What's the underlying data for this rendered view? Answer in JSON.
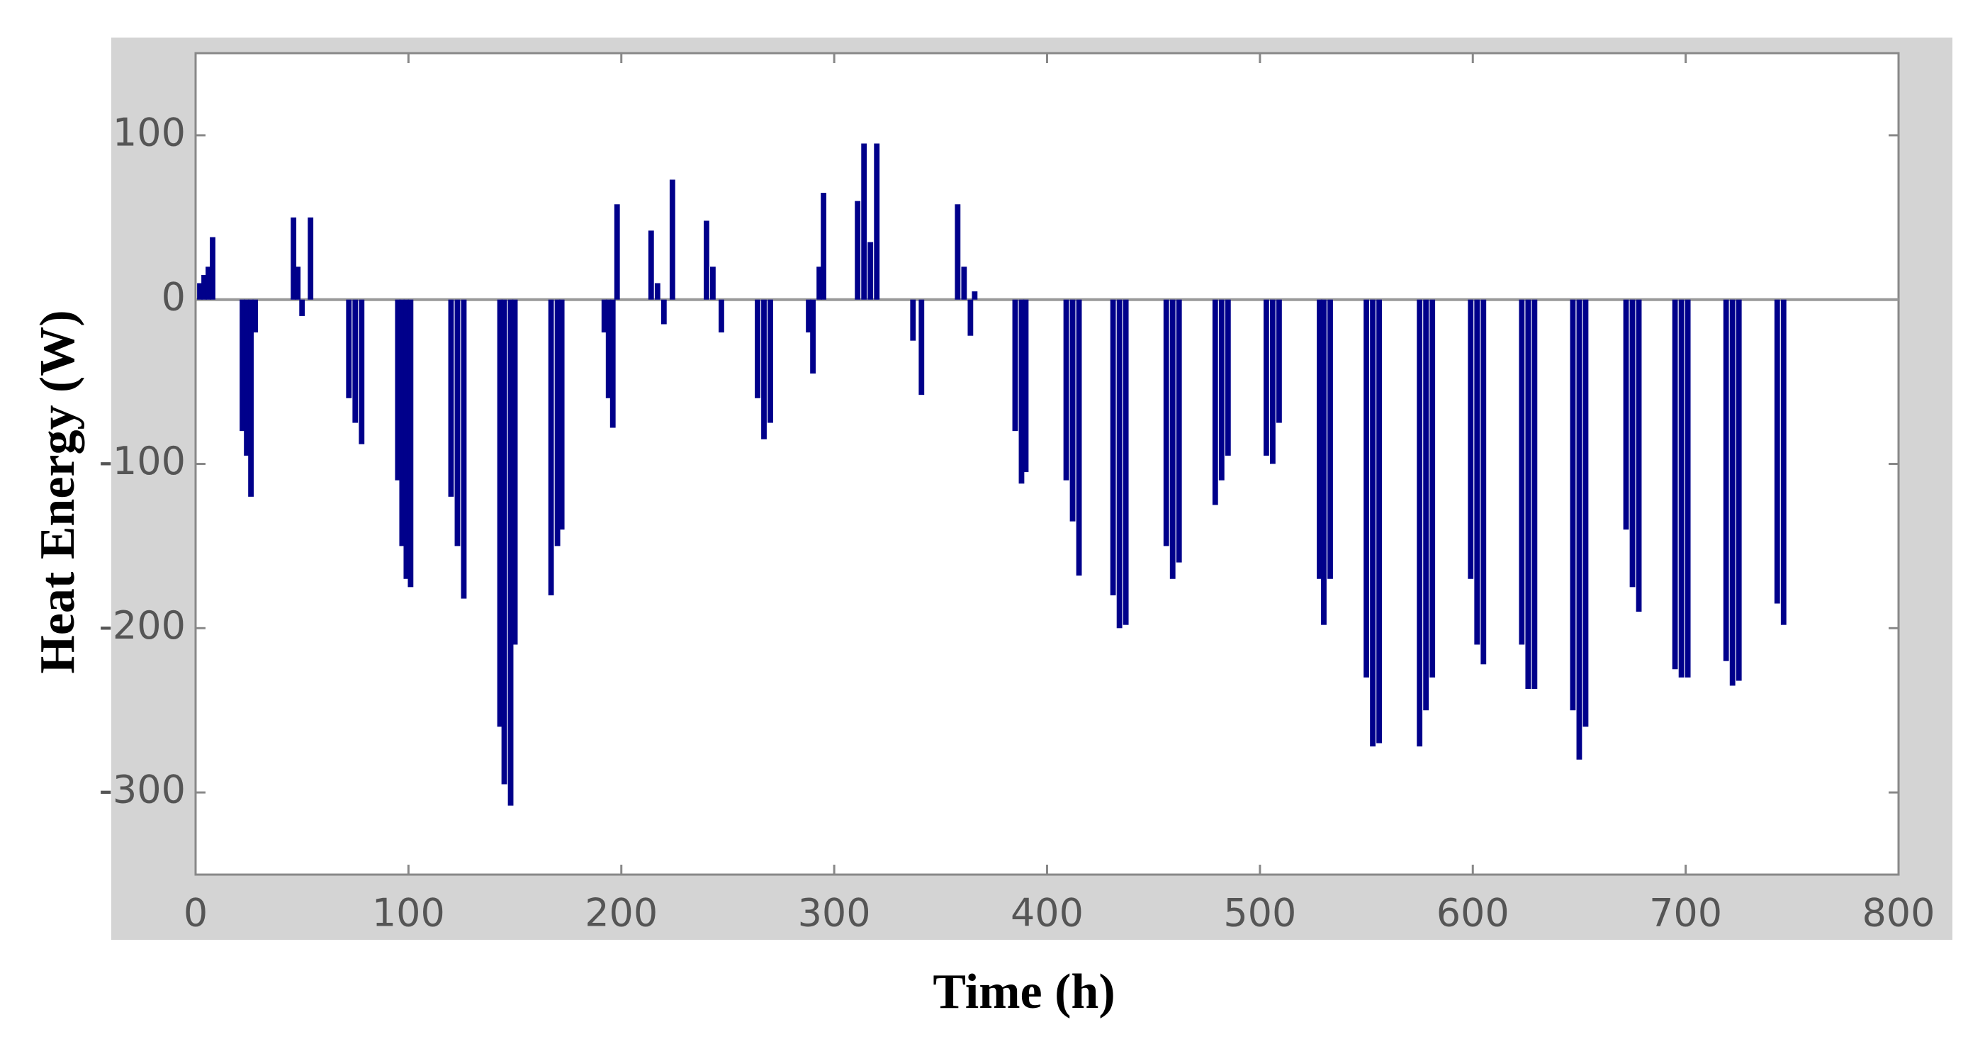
{
  "chart_data": {
    "type": "bar",
    "x_label": "Time (h)",
    "y_label": "Heat Energy (W)",
    "color": "#00008b",
    "x": [
      2,
      4,
      6,
      8,
      22,
      24,
      26,
      28,
      46,
      48,
      50,
      54,
      72,
      75,
      78,
      95,
      97,
      99,
      101,
      120,
      123,
      126,
      143,
      145,
      148,
      150,
      167,
      170,
      172,
      192,
      194,
      196,
      198,
      214,
      217,
      220,
      224,
      240,
      243,
      247,
      264,
      267,
      270,
      288,
      290,
      293,
      295,
      311,
      314,
      317,
      320,
      337,
      341,
      358,
      361,
      364,
      366,
      385,
      388,
      390,
      409,
      412,
      415,
      431,
      434,
      437,
      456,
      459,
      462,
      479,
      482,
      485,
      503,
      506,
      509,
      528,
      530,
      533,
      550,
      553,
      556,
      575,
      578,
      581,
      599,
      602,
      605,
      623,
      626,
      629,
      647,
      650,
      653,
      672,
      675,
      678,
      695,
      698,
      701,
      719,
      722,
      725,
      743,
      746
    ],
    "values": [
      10,
      15,
      20,
      38,
      -80,
      -95,
      -120,
      -20,
      50,
      20,
      -10,
      50,
      -60,
      -75,
      -88,
      -110,
      -150,
      -170,
      -175,
      -120,
      -150,
      -182,
      -260,
      -295,
      -308,
      -210,
      -180,
      -150,
      -140,
      -20,
      -60,
      -78,
      58,
      42,
      10,
      -15,
      73,
      48,
      20,
      -20,
      -60,
      -85,
      -75,
      -20,
      -45,
      20,
      65,
      60,
      95,
      35,
      95,
      -25,
      -58,
      58,
      20,
      -22,
      5,
      -80,
      -112,
      -105,
      -110,
      -135,
      -168,
      -180,
      -200,
      -198,
      -150,
      -170,
      -160,
      -125,
      -110,
      -95,
      -95,
      -100,
      -75,
      -170,
      -198,
      -170,
      -230,
      -272,
      -270,
      -272,
      -250,
      -230,
      -170,
      -210,
      -222,
      -210,
      -237,
      -237,
      -250,
      -280,
      -260,
      -140,
      -175,
      -190,
      -225,
      -230,
      -230,
      -220,
      -235,
      -232,
      -185,
      -198
    ],
    "xlim": [
      0,
      800
    ],
    "xticks": [
      0,
      100,
      200,
      300,
      400,
      500,
      600,
      700,
      800
    ],
    "ylim": [
      -350,
      150
    ],
    "yticks": [
      -300,
      -200,
      -100,
      0,
      100
    ]
  }
}
